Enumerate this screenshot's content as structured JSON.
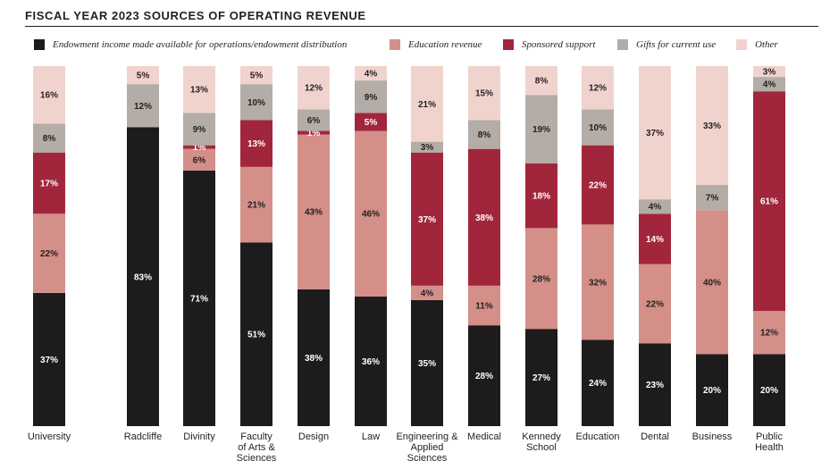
{
  "title": "FISCAL YEAR 2023 SOURCES OF OPERATING REVENUE",
  "colors": {
    "endowment": "#1d1b1c",
    "education": "#d48f89",
    "sponsored": "#a2263b",
    "gifts": "#b4aca6",
    "other": "#f1d3cd",
    "label_light": "#ffffff",
    "label_dark": "#231f20"
  },
  "legend": [
    {
      "key": "endowment",
      "label": "Endowment income made available for operations/endowment distribution"
    },
    {
      "key": "education",
      "label": "Education revenue"
    },
    {
      "key": "sponsored",
      "label": "Sponsored support"
    },
    {
      "key": "gifts",
      "label": "Gifts for current use"
    },
    {
      "key": "other",
      "label": "Other"
    }
  ],
  "chart_data": {
    "type": "bar",
    "stacked": true,
    "title": "FISCAL YEAR 2023 SOURCES OF OPERATING REVENUE",
    "unit": "%",
    "categories": [
      [
        "University"
      ],
      [
        "Radcliffe"
      ],
      [
        "Divinity"
      ],
      [
        "Faculty",
        "of Arts &",
        "Sciences"
      ],
      [
        "Design"
      ],
      [
        "Law"
      ],
      [
        "Engineering &",
        "Applied",
        "Sciences"
      ],
      [
        "Medical"
      ],
      [
        "Kennedy",
        "School"
      ],
      [
        "Education"
      ],
      [
        "Dental"
      ],
      [
        "Business"
      ],
      [
        "Public",
        "Health"
      ]
    ],
    "series": [
      {
        "key": "endowment",
        "name": "Endowment income made available for operations/endowment distribution",
        "values": [
          37,
          83,
          71,
          51,
          38,
          36,
          35,
          28,
          27,
          24,
          23,
          20,
          20
        ]
      },
      {
        "key": "education",
        "name": "Education revenue",
        "values": [
          22,
          null,
          6,
          21,
          43,
          46,
          4,
          11,
          28,
          32,
          22,
          40,
          12
        ]
      },
      {
        "key": "sponsored",
        "name": "Sponsored support",
        "values": [
          17,
          null,
          1,
          13,
          1,
          5,
          37,
          38,
          18,
          22,
          14,
          null,
          61
        ]
      },
      {
        "key": "gifts",
        "name": "Gifts for current use",
        "values": [
          8,
          12,
          9,
          10,
          6,
          9,
          3,
          8,
          19,
          10,
          4,
          7,
          4
        ]
      },
      {
        "key": "other",
        "name": "Other",
        "values": [
          16,
          5,
          13,
          5,
          12,
          4,
          21,
          15,
          8,
          12,
          37,
          33,
          3
        ]
      }
    ],
    "ylim": [
      0,
      100
    ],
    "grid": false,
    "legend_position": "top"
  }
}
